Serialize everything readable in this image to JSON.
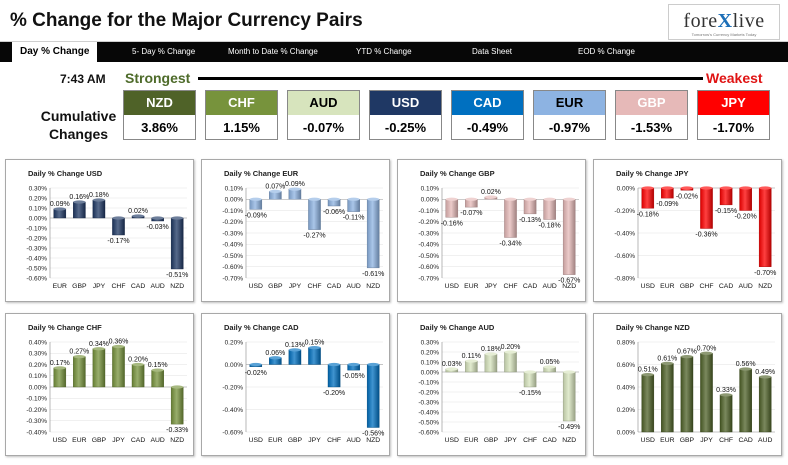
{
  "header": {
    "title": "% Change for the Major Currency Pairs",
    "logo_text_a": "fore",
    "logo_text_x": "X",
    "logo_text_b": "live",
    "logo_tagline": "Tomorrow's Currency Markets Today"
  },
  "nav": {
    "items": [
      "Day % Change",
      "5- Day % Change",
      "Month to Date % Change",
      "YTD % Change",
      "Data Sheet",
      "EOD % Change"
    ]
  },
  "summary": {
    "time": "7:43 AM",
    "strongest_label": "Strongest",
    "weakest_label": "Weakest",
    "cumulative_label": "Cumulative Changes",
    "currencies": [
      {
        "name": "NZD",
        "value": "3.86%",
        "color": "#4f6228",
        "text_color": "#ffffff"
      },
      {
        "name": "CHF",
        "value": "1.15%",
        "color": "#77933c",
        "text_color": "#ffffff"
      },
      {
        "name": "AUD",
        "value": "-0.07%",
        "color": "#d7e4bd",
        "text_color": "#000000"
      },
      {
        "name": "USD",
        "value": "-0.25%",
        "color": "#1f3864",
        "text_color": "#ffffff"
      },
      {
        "name": "CAD",
        "value": "-0.49%",
        "color": "#0070c0",
        "text_color": "#ffffff"
      },
      {
        "name": "EUR",
        "value": "-0.97%",
        "color": "#8db3e2",
        "text_color": "#000000"
      },
      {
        "name": "GBP",
        "value": "-1.53%",
        "color": "#e6b9b8",
        "text_color": "#ffffff"
      },
      {
        "name": "JPY",
        "value": "-1.70%",
        "color": "#ff0000",
        "text_color": "#ffffff"
      }
    ]
  },
  "chart_data": [
    {
      "type": "bar",
      "title": "Daily % Change USD",
      "categories": [
        "EUR",
        "GBP",
        "JPY",
        "CHF",
        "CAD",
        "AUD",
        "NZD"
      ],
      "values": [
        0.09,
        0.16,
        0.18,
        -0.17,
        0.02,
        -0.03,
        -0.51
      ],
      "labels": [
        "0.09%",
        "0.16%",
        "0.18%",
        "-0.17%",
        "0.02%",
        "-0.03%",
        "-0.51%"
      ],
      "ylim": [
        -0.6,
        0.3
      ],
      "yticks": [
        "0.30%",
        "0.20%",
        "0.10%",
        "0.00%",
        "-0.10%",
        "-0.20%",
        "-0.30%",
        "-0.40%",
        "-0.50%",
        "-0.60%"
      ],
      "color": "#1f3864"
    },
    {
      "type": "bar",
      "title": "Daily % Change EUR",
      "categories": [
        "USD",
        "GBP",
        "JPY",
        "CHF",
        "CAD",
        "AUD",
        "NZD"
      ],
      "values": [
        -0.09,
        0.07,
        0.09,
        -0.27,
        -0.06,
        -0.11,
        -0.61
      ],
      "labels": [
        "-0.09%",
        "0.07%",
        "0.09%",
        "-0.27%",
        "-0.06%",
        "-0.11%",
        "-0.61%"
      ],
      "ylim": [
        -0.7,
        0.1
      ],
      "yticks": [
        "0.10%",
        "0.00%",
        "-0.10%",
        "-0.20%",
        "-0.30%",
        "-0.40%",
        "-0.50%",
        "-0.60%",
        "-0.70%"
      ],
      "color": "#8db3e2"
    },
    {
      "type": "bar",
      "title": "Daily % Change GBP",
      "categories": [
        "USD",
        "EUR",
        "JPY",
        "CHF",
        "CAD",
        "AUD",
        "NZD"
      ],
      "values": [
        -0.16,
        -0.07,
        0.02,
        -0.34,
        -0.13,
        -0.18,
        -0.67
      ],
      "labels": [
        "-0.16%",
        "-0.07%",
        "0.02%",
        "-0.34%",
        "-0.13%",
        "-0.18%",
        "-0.67%"
      ],
      "ylim": [
        -0.7,
        0.1
      ],
      "yticks": [
        "0.10%",
        "0.00%",
        "-0.10%",
        "-0.20%",
        "-0.30%",
        "-0.40%",
        "-0.50%",
        "-0.60%",
        "-0.70%"
      ],
      "color": "#e6b9b8"
    },
    {
      "type": "bar",
      "title": "Daily % Change JPY",
      "categories": [
        "USD",
        "EUR",
        "GBP",
        "CHF",
        "CAD",
        "AUD",
        "NZD"
      ],
      "values": [
        -0.18,
        -0.09,
        -0.02,
        -0.36,
        -0.15,
        -0.2,
        -0.7
      ],
      "labels": [
        "-0.18%",
        "-0.09%",
        "-0.02%",
        "-0.36%",
        "-0.15%",
        "-0.20%",
        "-0.70%"
      ],
      "ylim": [
        -0.8,
        0.0
      ],
      "yticks": [
        "0.00%",
        "-0.20%",
        "-0.40%",
        "-0.60%",
        "-0.80%"
      ],
      "color": "#ff0000"
    },
    {
      "type": "bar",
      "title": "Daily % Change CHF",
      "categories": [
        "USD",
        "EUR",
        "GBP",
        "JPY",
        "CAD",
        "AUD",
        "NZD"
      ],
      "values": [
        0.17,
        0.27,
        0.34,
        0.36,
        0.2,
        0.15,
        -0.33
      ],
      "labels": [
        "0.17%",
        "0.27%",
        "0.34%",
        "0.36%",
        "0.20%",
        "0.15%",
        "-0.33%"
      ],
      "ylim": [
        -0.4,
        0.4
      ],
      "yticks": [
        "0.40%",
        "0.30%",
        "0.20%",
        "0.10%",
        "0.00%",
        "-0.10%",
        "-0.20%",
        "-0.30%",
        "-0.40%"
      ],
      "color": "#77933c"
    },
    {
      "type": "bar",
      "title": "Daily % Change CAD",
      "categories": [
        "USD",
        "EUR",
        "GBP",
        "JPY",
        "CHF",
        "AUD",
        "NZD"
      ],
      "values": [
        -0.02,
        0.06,
        0.13,
        0.15,
        -0.2,
        -0.05,
        -0.56
      ],
      "labels": [
        "-0.02%",
        "0.06%",
        "0.13%",
        "0.15%",
        "-0.20%",
        "-0.05%",
        "-0.56%"
      ],
      "ylim": [
        -0.6,
        0.2
      ],
      "yticks": [
        "0.20%",
        "0.00%",
        "-0.20%",
        "-0.40%",
        "-0.60%"
      ],
      "color": "#0070c0"
    },
    {
      "type": "bar",
      "title": "Daily % Change AUD",
      "categories": [
        "USD",
        "EUR",
        "GBP",
        "JPY",
        "CHF",
        "CAD",
        "NZD"
      ],
      "values": [
        0.03,
        0.11,
        0.18,
        0.2,
        -0.15,
        0.05,
        -0.49
      ],
      "labels": [
        "0.03%",
        "0.11%",
        "0.18%",
        "0.20%",
        "-0.15%",
        "0.05%",
        "-0.49%"
      ],
      "ylim": [
        -0.6,
        0.3
      ],
      "yticks": [
        "0.30%",
        "0.20%",
        "0.10%",
        "0.00%",
        "-0.10%",
        "-0.20%",
        "-0.30%",
        "-0.40%",
        "-0.50%",
        "-0.60%"
      ],
      "color": "#d7e4bd"
    },
    {
      "type": "bar",
      "title": "Daily % Change NZD",
      "categories": [
        "USD",
        "EUR",
        "GBP",
        "JPY",
        "CHF",
        "CAD",
        "AUD"
      ],
      "values": [
        0.51,
        0.61,
        0.67,
        0.7,
        0.33,
        0.56,
        0.49
      ],
      "labels": [
        "0.51%",
        "0.61%",
        "0.67%",
        "0.70%",
        "0.33%",
        "0.56%",
        "0.49%"
      ],
      "ylim": [
        0.0,
        0.8
      ],
      "yticks": [
        "0.80%",
        "0.60%",
        "0.40%",
        "0.20%",
        "0.00%"
      ],
      "color": "#4f6228"
    }
  ]
}
